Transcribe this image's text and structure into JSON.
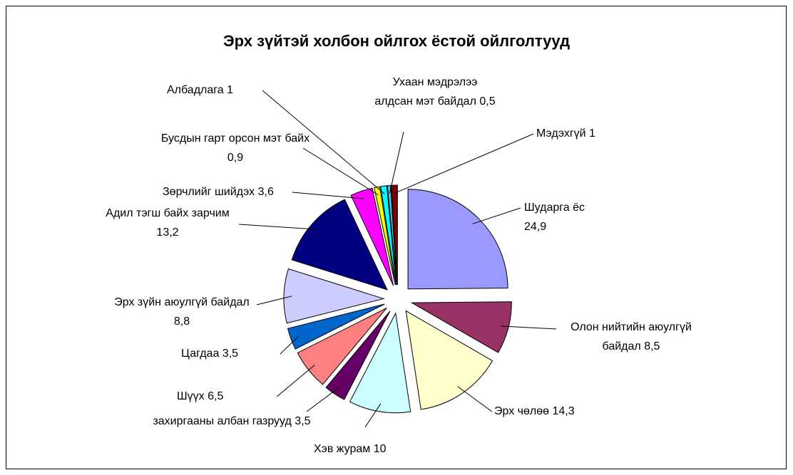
{
  "chart_data": {
    "type": "pie",
    "title": "Эрх зүйтэй холбон ойлгох ёстой ойлголтууд",
    "categories": [
      "Шударга ёс",
      "Олон нийтийн аюулгүй байдал",
      "Эрх чөлөө",
      "Хэв журам",
      "захиргааны албан газрууд",
      "Шүүх",
      "Цагдаа",
      "Эрх зүйн аюулгүй байдал",
      "Адил тэгш байх зарчим",
      "Зөрчлийг шийдэх",
      "Бусдын гарт орсон мэт байх",
      "Албадлага",
      "Ухаан мэдрэлээ алдсан мэт байдал",
      "Мэдэхгүй"
    ],
    "values": [
      24.9,
      8.5,
      14.3,
      10,
      3.5,
      6.5,
      3.5,
      8.8,
      13.2,
      3.6,
      0.9,
      1,
      0.5,
      1
    ],
    "value_labels": [
      "24,9",
      "8,5",
      "14,3",
      "10",
      "3,5",
      "6,5",
      "3,5",
      "8,8",
      "13,2",
      "3,6",
      "0,9",
      "1",
      "0,5",
      "1"
    ],
    "colors": [
      "#9999ff",
      "#993366",
      "#ffffcc",
      "#ccffff",
      "#660066",
      "#ff8080",
      "#0066cc",
      "#ccccff",
      "#000080",
      "#ff00ff",
      "#ffff00",
      "#00ffff",
      "#33ccff",
      "#800000"
    ]
  }
}
